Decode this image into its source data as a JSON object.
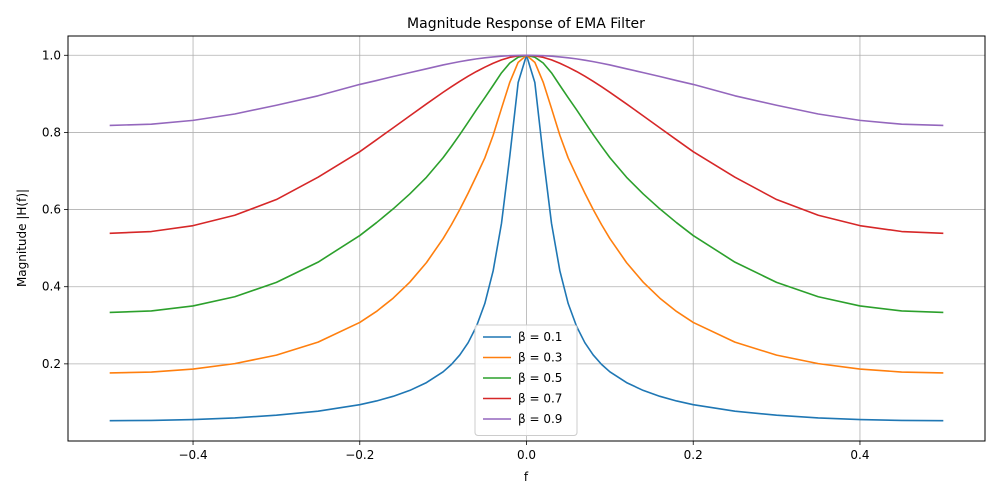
{
  "chart_data": {
    "type": "line",
    "title": "Magnitude Response of EMA Filter",
    "xlabel": "f",
    "ylabel": "Magnitude |H(f)|",
    "xlim": [
      -0.55,
      0.55
    ],
    "ylim": [
      0.0,
      1.05
    ],
    "xticks": [
      -0.4,
      -0.2,
      0.0,
      0.2,
      0.4
    ],
    "xtick_labels": [
      "−0.4",
      "−0.2",
      "0.0",
      "0.2",
      "0.4"
    ],
    "yticks": [
      0.2,
      0.4,
      0.6,
      0.8,
      1.0
    ],
    "ytick_labels": [
      "0.2",
      "0.4",
      "0.6",
      "0.8",
      "1.0"
    ],
    "grid": true,
    "legend_position": "bottom-center",
    "x": [
      -0.5,
      -0.45,
      -0.4,
      -0.35,
      -0.3,
      -0.25,
      -0.2,
      -0.18,
      -0.16,
      -0.14,
      -0.12,
      -0.1,
      -0.09,
      -0.08,
      -0.07,
      -0.06,
      -0.05,
      -0.04,
      -0.03,
      -0.02,
      -0.01,
      0.0,
      0.01,
      0.02,
      0.03,
      0.04,
      0.05,
      0.06,
      0.07,
      0.08,
      0.09,
      0.1,
      0.12,
      0.14,
      0.16,
      0.18,
      0.2,
      0.25,
      0.3,
      0.35,
      0.4,
      0.45,
      0.5
    ],
    "series": [
      {
        "name": "β = 0.1",
        "color": "#1f77b4",
        "values": [
          0.0526,
          0.0533,
          0.0557,
          0.0599,
          0.0668,
          0.0774,
          0.0941,
          0.1038,
          0.1158,
          0.1311,
          0.1514,
          0.1794,
          0.1986,
          0.2231,
          0.2549,
          0.2975,
          0.3564,
          0.4412,
          0.5643,
          0.7392,
          0.9295,
          1.0,
          0.9295,
          0.7392,
          0.5643,
          0.4412,
          0.3564,
          0.2975,
          0.2549,
          0.2231,
          0.1986,
          0.1794,
          0.1514,
          0.1311,
          0.1158,
          0.1038,
          0.0941,
          0.0774,
          0.0668,
          0.0599,
          0.0557,
          0.0533,
          0.0526
        ]
      },
      {
        "name": "β = 0.3",
        "color": "#ff7f0e",
        "values": [
          0.1765,
          0.1788,
          0.1866,
          0.2006,
          0.2226,
          0.2563,
          0.3074,
          0.3359,
          0.3702,
          0.4117,
          0.4625,
          0.5249,
          0.5609,
          0.6003,
          0.6427,
          0.6876,
          0.7339,
          0.7927,
          0.8622,
          0.9304,
          0.9817,
          1.0,
          0.9817,
          0.9304,
          0.8622,
          0.7927,
          0.7339,
          0.6876,
          0.6427,
          0.6003,
          0.5609,
          0.5249,
          0.4625,
          0.4117,
          0.3702,
          0.3359,
          0.3074,
          0.2563,
          0.2226,
          0.2006,
          0.1866,
          0.1788,
          0.1765
        ]
      },
      {
        "name": "β = 0.5",
        "color": "#2ca02c",
        "values": [
          0.3333,
          0.3372,
          0.3501,
          0.374,
          0.4112,
          0.4637,
          0.5326,
          0.566,
          0.6017,
          0.6406,
          0.6837,
          0.7347,
          0.7639,
          0.7945,
          0.8265,
          0.8589,
          0.89,
          0.922,
          0.9545,
          0.98,
          0.995,
          1.0,
          0.995,
          0.98,
          0.9545,
          0.922,
          0.89,
          0.8589,
          0.8265,
          0.7945,
          0.7639,
          0.7347,
          0.6837,
          0.6406,
          0.6017,
          0.566,
          0.5326,
          0.4637,
          0.4112,
          0.374,
          0.3501,
          0.3372,
          0.3333
        ]
      },
      {
        "name": "β = 0.7",
        "color": "#d62728",
        "values": [
          0.5385,
          0.5431,
          0.5583,
          0.5852,
          0.626,
          0.6839,
          0.75,
          0.7809,
          0.8119,
          0.843,
          0.8738,
          0.9041,
          0.9186,
          0.9326,
          0.9457,
          0.958,
          0.9692,
          0.9794,
          0.988,
          0.9946,
          0.9987,
          1.0,
          0.9987,
          0.9946,
          0.988,
          0.9794,
          0.9692,
          0.958,
          0.9457,
          0.9326,
          0.9186,
          0.9041,
          0.8738,
          0.843,
          0.8119,
          0.7809,
          0.75,
          0.6839,
          0.626,
          0.5852,
          0.5583,
          0.5431,
          0.5385
        ]
      },
      {
        "name": "β = 0.9",
        "color": "#9467bd",
        "values": [
          0.8182,
          0.8213,
          0.8313,
          0.8478,
          0.8705,
          0.895,
          0.9245,
          0.9345,
          0.945,
          0.955,
          0.965,
          0.975,
          0.9794,
          0.9836,
          0.9874,
          0.9907,
          0.9935,
          0.9958,
          0.9976,
          0.9989,
          0.9997,
          1.0,
          0.9997,
          0.9989,
          0.9976,
          0.9958,
          0.9935,
          0.9907,
          0.9874,
          0.9836,
          0.9794,
          0.975,
          0.965,
          0.955,
          0.945,
          0.9345,
          0.9245,
          0.895,
          0.8705,
          0.8478,
          0.8313,
          0.8213,
          0.8182
        ]
      }
    ]
  }
}
